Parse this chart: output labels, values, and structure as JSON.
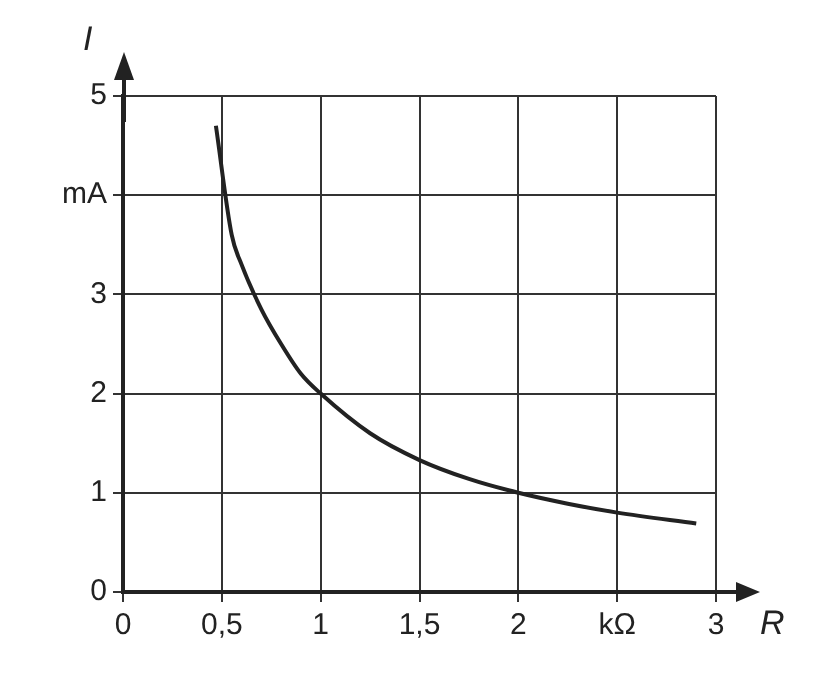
{
  "chart_data": {
    "type": "line",
    "xlabel": "R",
    "ylabel": "I",
    "x": [
      0.47,
      0.55,
      0.6,
      0.7,
      0.8,
      0.9,
      1,
      1.25,
      1.5,
      1.75,
      2,
      2.25,
      2.5,
      2.9
    ],
    "series": [
      {
        "color": "#222222",
        "values": [
          4.7,
          3.6,
          3.3,
          2.85,
          2.5,
          2.2,
          2,
          1.6,
          1.33,
          1.14,
          1,
          0.89,
          0.8,
          0.69
        ]
      }
    ],
    "xlim": [
      0,
      3
    ],
    "ylim": [
      0,
      5
    ],
    "xticks": [
      0,
      {
        "value": 0.5,
        "label": "0,5"
      },
      1,
      {
        "value": 1.5,
        "label": "1,5"
      },
      2,
      {
        "value": 2.5,
        "label": "kΩ"
      },
      3
    ],
    "yticks": [
      0,
      1,
      2,
      3,
      {
        "value": 4,
        "label": "mA"
      },
      5
    ],
    "grid": true,
    "legend": false,
    "marker": "none",
    "line_style": "solid"
  }
}
